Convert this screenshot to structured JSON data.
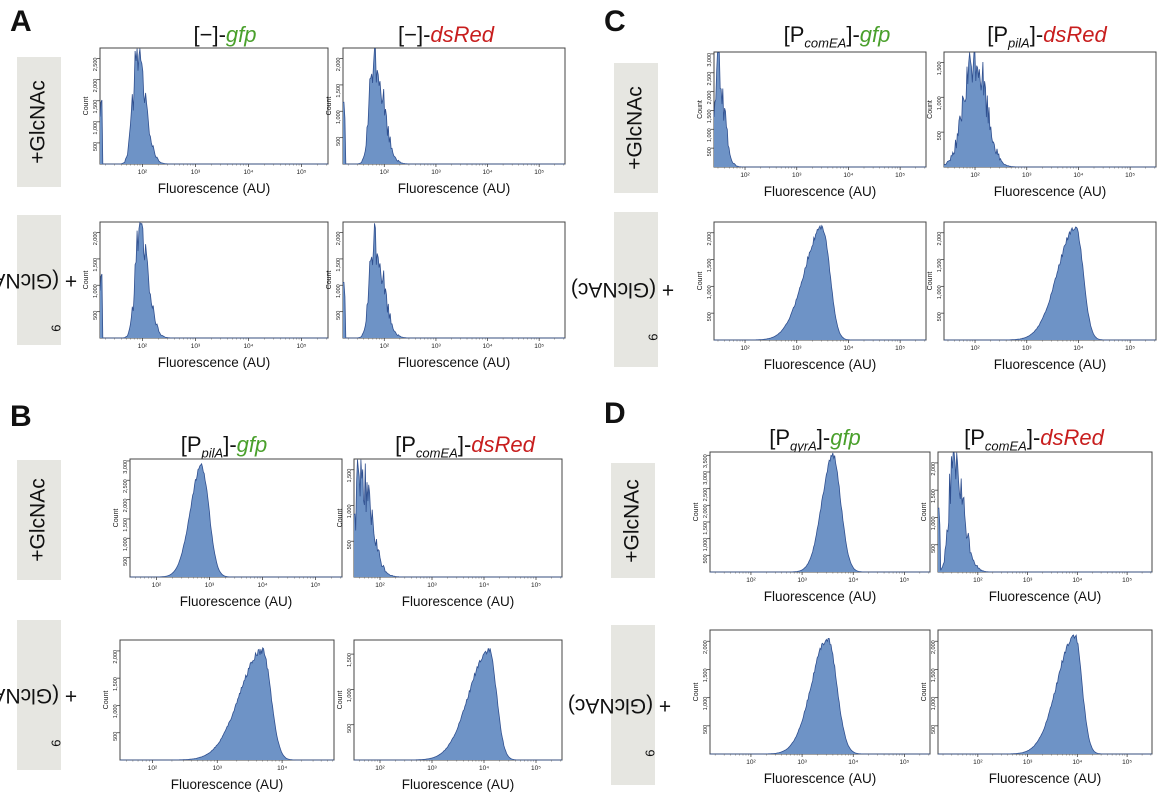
{
  "panels": [
    {
      "letter": "A",
      "columns": [
        {
          "bracket": "−",
          "subscript": "",
          "gene": "gfp",
          "color": "#4aa02c"
        },
        {
          "bracket": "−",
          "subscript": "",
          "gene": "dsRed",
          "color": "#c81e1e"
        }
      ]
    },
    {
      "letter": "B",
      "columns": [
        {
          "bracket": "P",
          "subscript": "pilA",
          "gene": "gfp",
          "color": "#4aa02c"
        },
        {
          "bracket": "P",
          "subscript": "comEA",
          "gene": "dsRed",
          "color": "#c81e1e"
        }
      ]
    },
    {
      "letter": "C",
      "columns": [
        {
          "bracket": "P",
          "subscript": "comEA",
          "gene": "gfp",
          "color": "#4aa02c"
        },
        {
          "bracket": "P",
          "subscript": "pilA",
          "gene": "dsRed",
          "color": "#c81e1e"
        }
      ]
    },
    {
      "letter": "D",
      "columns": [
        {
          "bracket": "P",
          "subscript": "gyrA",
          "gene": "gfp",
          "color": "#4aa02c"
        },
        {
          "bracket": "P",
          "subscript": "comEA",
          "gene": "dsRed",
          "color": "#c81e1e"
        }
      ]
    }
  ],
  "row_labels": {
    "glcnac": "+GlcNAc",
    "chitin_prefix": "+ (GlcNAc)",
    "chitin_subscript": "6"
  },
  "axis": {
    "xlabel": "Fluorescence (AU)",
    "ylabel": "Count",
    "fill_color": "#6e93c6",
    "stroke_color": "#2f4f8f",
    "x_tick_labels": [
      "10²",
      "10³",
      "10⁴",
      "10⁵"
    ]
  },
  "chart_data": [
    {
      "id": "A-glcnac-gfp",
      "type": "area",
      "scale": "log",
      "xlim": [
        1.2,
        5.5
      ],
      "yticks": [
        500,
        1000,
        1500,
        2000,
        2500
      ],
      "ylim": [
        0,
        2750
      ],
      "dist": {
        "kind": "decay",
        "peak": 1.9,
        "height": 2500,
        "width": 0.22,
        "noise": true
      }
    },
    {
      "id": "A-glcnac-dsred",
      "type": "area",
      "scale": "log",
      "xlim": [
        1.2,
        5.5
      ],
      "yticks": [
        500,
        1000,
        1500,
        2000
      ],
      "ylim": [
        0,
        2200
      ],
      "dist": {
        "kind": "decay",
        "peak": 1.8,
        "height": 2000,
        "width": 0.25,
        "noise": true
      }
    },
    {
      "id": "A-chitin-gfp",
      "type": "area",
      "scale": "log",
      "xlim": [
        1.2,
        5.5
      ],
      "yticks": [
        500,
        1000,
        1500,
        2000
      ],
      "ylim": [
        0,
        2200
      ],
      "dist": {
        "kind": "decay",
        "peak": 1.95,
        "height": 2000,
        "width": 0.22,
        "noise": true
      }
    },
    {
      "id": "A-chitin-dsred",
      "type": "area",
      "scale": "log",
      "xlim": [
        1.2,
        5.5
      ],
      "yticks": [
        500,
        1000,
        1500,
        2000
      ],
      "ylim": [
        0,
        2200
      ],
      "dist": {
        "kind": "decay",
        "peak": 1.8,
        "height": 1800,
        "width": 0.25,
        "noise": true
      }
    },
    {
      "id": "B-glcnac-gfp",
      "type": "area",
      "scale": "log",
      "xlim": [
        1.5,
        5.5
      ],
      "yticks": [
        500,
        1000,
        1500,
        2000,
        2500,
        3000
      ],
      "ylim": [
        0,
        3050
      ],
      "dist": {
        "kind": "bell",
        "peak": 2.85,
        "height": 2850,
        "left": 0.3,
        "right": 0.2,
        "noise": false
      }
    },
    {
      "id": "B-glcnac-dsred",
      "type": "area",
      "scale": "log",
      "xlim": [
        1.5,
        5.5
      ],
      "yticks": [
        500,
        1000,
        1500
      ],
      "ylim": [
        0,
        1650
      ],
      "dist": {
        "kind": "decay",
        "peak": 1.6,
        "height": 1500,
        "width": 0.3,
        "noise": true
      }
    },
    {
      "id": "B-chitin-gfp",
      "type": "area",
      "scale": "log",
      "xlim": [
        1.5,
        4.8
      ],
      "yticks": [
        500,
        1000,
        1500,
        2000
      ],
      "ylim": [
        0,
        2200
      ],
      "dist": {
        "kind": "bell",
        "peak": 3.7,
        "height": 2000,
        "left": 0.5,
        "right": 0.18,
        "noise": false
      }
    },
    {
      "id": "B-chitin-dsred",
      "type": "area",
      "scale": "log",
      "xlim": [
        1.5,
        5.5
      ],
      "yticks": [
        500,
        1000,
        1500
      ],
      "ylim": [
        0,
        1700
      ],
      "dist": {
        "kind": "bell",
        "peak": 4.1,
        "height": 1550,
        "left": 0.55,
        "right": 0.2,
        "noise": false
      }
    },
    {
      "id": "C-glcnac-gfp",
      "type": "area",
      "scale": "log",
      "xlim": [
        1.4,
        5.5
      ],
      "yticks": [
        500,
        1000,
        1500,
        2000,
        2500,
        3000
      ],
      "ylim": [
        0,
        3050
      ],
      "dist": {
        "kind": "decay",
        "peak": 1.45,
        "height": 2950,
        "width": 0.18,
        "noise": true
      }
    },
    {
      "id": "C-glcnac-dsred",
      "type": "area",
      "scale": "log",
      "xlim": [
        1.4,
        5.5
      ],
      "yticks": [
        500,
        1000,
        1500
      ],
      "ylim": [
        0,
        1650
      ],
      "dist": {
        "kind": "bell",
        "peak": 2.0,
        "height": 1550,
        "left": 0.3,
        "right": 0.3,
        "noise": true
      }
    },
    {
      "id": "C-chitin-gfp",
      "type": "area",
      "scale": "log",
      "xlim": [
        1.4,
        5.5
      ],
      "yticks": [
        500,
        1000,
        1500,
        2000
      ],
      "ylim": [
        0,
        2200
      ],
      "dist": {
        "kind": "bell",
        "peak": 3.5,
        "height": 2100,
        "left": 0.5,
        "right": 0.2,
        "noise": false
      }
    },
    {
      "id": "C-chitin-dsred",
      "type": "area",
      "scale": "log",
      "xlim": [
        1.4,
        5.5
      ],
      "yticks": [
        500,
        1000,
        1500,
        2000
      ],
      "ylim": [
        0,
        2200
      ],
      "dist": {
        "kind": "bell",
        "peak": 3.95,
        "height": 2100,
        "left": 0.5,
        "right": 0.2,
        "noise": false
      }
    },
    {
      "id": "D-glcnac-gfp",
      "type": "area",
      "scale": "log",
      "xlim": [
        1.2,
        5.5
      ],
      "yticks": [
        500,
        1000,
        1500,
        2000,
        2500,
        3000,
        3500
      ],
      "ylim": [
        0,
        3600
      ],
      "dist": {
        "kind": "bell",
        "peak": 3.6,
        "height": 3500,
        "left": 0.3,
        "right": 0.22,
        "noise": false
      }
    },
    {
      "id": "D-glcnac-dsred",
      "type": "area",
      "scale": "log",
      "xlim": [
        1.2,
        5.5
      ],
      "yticks": [
        500,
        1000,
        1500,
        2000
      ],
      "ylim": [
        0,
        2200
      ],
      "dist": {
        "kind": "decay",
        "peak": 1.5,
        "height": 2000,
        "width": 0.28,
        "noise": true
      }
    },
    {
      "id": "D-chitin-gfp",
      "type": "area",
      "scale": "log",
      "xlim": [
        1.2,
        5.5
      ],
      "yticks": [
        500,
        1000,
        1500,
        2000
      ],
      "ylim": [
        0,
        2200
      ],
      "dist": {
        "kind": "bell",
        "peak": 3.5,
        "height": 2050,
        "left": 0.45,
        "right": 0.25,
        "noise": false
      }
    },
    {
      "id": "D-chitin-dsred",
      "type": "area",
      "scale": "log",
      "xlim": [
        1.2,
        5.5
      ],
      "yticks": [
        500,
        1000,
        1500,
        2000
      ],
      "ylim": [
        0,
        2200
      ],
      "dist": {
        "kind": "bell",
        "peak": 3.95,
        "height": 2100,
        "left": 0.5,
        "right": 0.2,
        "noise": false
      }
    }
  ]
}
